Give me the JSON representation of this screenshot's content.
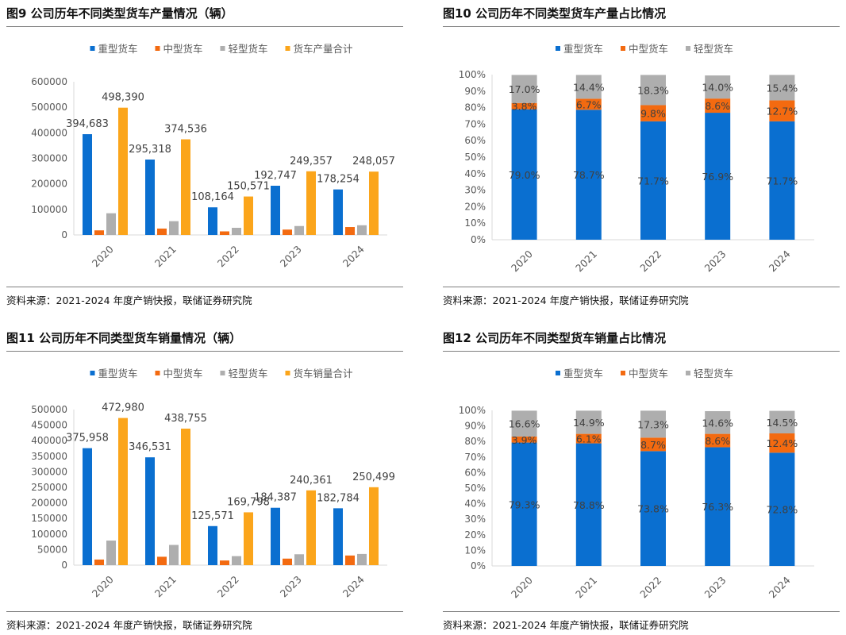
{
  "colors": {
    "heavy": "#0a6fd0",
    "medium": "#f36a10",
    "light": "#aeaeae",
    "total": "#fba51b",
    "axis": "#d9d9d9",
    "tick_text": "#595959",
    "label_text": "#404040"
  },
  "charts": [
    {
      "id": "fig9",
      "title": "图9  公司历年不同类型货车产量情况（辆）",
      "source": "资料来源：2021-2024 年度产销快报，联储证券研究院",
      "chart_data": {
        "type": "bar",
        "title": "公司历年不同类型货车产量情况（辆）",
        "categories": [
          "2020",
          "2021",
          "2022",
          "2023",
          "2024"
        ],
        "ylim": [
          0,
          600000
        ],
        "yticks": [
          0,
          100000,
          200000,
          300000,
          400000,
          500000,
          600000
        ],
        "ytick_labels": [
          "0",
          "100000",
          "200000",
          "300000",
          "400000",
          "500000",
          "600000"
        ],
        "legend_position": "top",
        "series": [
          {
            "name": "重型货车",
            "key": "heavy",
            "values": [
              394683,
              295318,
              108164,
              192747,
              178254
            ],
            "labels": [
              "394,683",
              "295,318",
              "108,164",
              "192,747",
              "178,254"
            ]
          },
          {
            "name": "中型货车",
            "key": "medium",
            "values": [
              18000,
              25000,
              14000,
              21000,
              31000
            ],
            "labels": null
          },
          {
            "name": "轻型货车",
            "key": "light",
            "values": [
              85000,
              54000,
              28000,
              35000,
              38000
            ],
            "labels": null
          },
          {
            "name": "货车产量合计",
            "key": "total",
            "values": [
              498390,
              374536,
              150571,
              249357,
              248057
            ],
            "labels": [
              "498,390",
              "374,536",
              "150,571",
              "249,357",
              "248,057"
            ]
          }
        ]
      }
    },
    {
      "id": "fig10",
      "title": "图10 公司历年不同类型货车产量占比情况",
      "source": "资料来源：2021-2024 年度产销快报，联储证券研究院",
      "chart_data": {
        "type": "stacked_bar",
        "title": "公司历年不同类型货车产量占比情况",
        "categories": [
          "2020",
          "2021",
          "2022",
          "2023",
          "2024"
        ],
        "ylim": [
          0,
          100
        ],
        "yticks": [
          0,
          10,
          20,
          30,
          40,
          50,
          60,
          70,
          80,
          90,
          100
        ],
        "ytick_labels": [
          "0%",
          "10%",
          "20%",
          "30%",
          "40%",
          "50%",
          "60%",
          "70%",
          "80%",
          "90%",
          "100%"
        ],
        "legend_position": "top",
        "series": [
          {
            "name": "重型货车",
            "key": "heavy",
            "values": [
              79.0,
              78.7,
              71.7,
              76.9,
              71.7
            ],
            "labels": [
              "79.0%",
              "78.7%",
              "71.7%",
              "76.9%",
              "71.7%"
            ]
          },
          {
            "name": "中型货车",
            "key": "medium",
            "values": [
              3.8,
              6.7,
              9.8,
              8.6,
              12.7
            ],
            "labels": [
              "3.8%",
              "6.7%",
              "9.8%",
              "8.6%",
              "12.7%"
            ]
          },
          {
            "name": "轻型货车",
            "key": "light",
            "values": [
              17.0,
              14.4,
              18.3,
              14.0,
              15.4
            ],
            "labels": [
              "17.0%",
              "14.4%",
              "18.3%",
              "14.0%",
              "15.4%"
            ]
          }
        ]
      }
    },
    {
      "id": "fig11",
      "title": "图11 公司历年不同类型货车销量情况（辆）",
      "source": "资料来源：2021-2024 年度产销快报，联储证券研究院",
      "chart_data": {
        "type": "bar",
        "title": "公司历年不同类型货车销量情况（辆）",
        "categories": [
          "2020",
          "2021",
          "2022",
          "2023",
          "2024"
        ],
        "ylim": [
          0,
          500000
        ],
        "yticks": [
          0,
          50000,
          100000,
          150000,
          200000,
          250000,
          300000,
          350000,
          400000,
          450000,
          500000
        ],
        "ytick_labels": [
          "0",
          "50000",
          "100000",
          "150000",
          "200000",
          "250000",
          "300000",
          "350000",
          "400000",
          "450000",
          "500000"
        ],
        "legend_position": "top",
        "series": [
          {
            "name": "重型货车",
            "key": "heavy",
            "values": [
              375958,
              346531,
              125571,
              184387,
              182784
            ],
            "labels": [
              "375,958",
              "346,531",
              "125,571",
              "184,387",
              "182,784"
            ]
          },
          {
            "name": "中型货车",
            "key": "medium",
            "values": [
              18000,
              27000,
              15000,
              21000,
              31000
            ],
            "labels": null
          },
          {
            "name": "轻型货车",
            "key": "light",
            "values": [
              79000,
              65000,
              29000,
              35000,
              36000
            ],
            "labels": null
          },
          {
            "name": "货车销量合计",
            "key": "total",
            "values": [
              472980,
              438755,
              169798,
              240361,
              250499
            ],
            "labels": [
              "472,980",
              "438,755",
              "169,798",
              "240,361",
              "250,499"
            ]
          }
        ]
      }
    },
    {
      "id": "fig12",
      "title": "图12 公司历年不同类型货车销量占比情况",
      "source": "资料来源：2021-2024 年度产销快报，联储证券研究院",
      "chart_data": {
        "type": "stacked_bar",
        "title": "公司历年不同类型货车销量占比情况",
        "categories": [
          "2020",
          "2021",
          "2022",
          "2023",
          "2024"
        ],
        "ylim": [
          0,
          100
        ],
        "yticks": [
          0,
          10,
          20,
          30,
          40,
          50,
          60,
          70,
          80,
          90,
          100
        ],
        "ytick_labels": [
          "0%",
          "10%",
          "20%",
          "30%",
          "40%",
          "50%",
          "60%",
          "70%",
          "80%",
          "90%",
          "100%"
        ],
        "legend_position": "top",
        "series": [
          {
            "name": "重型货车",
            "key": "heavy",
            "values": [
              79.3,
              78.8,
              73.8,
              76.3,
              72.8
            ],
            "labels": [
              "79.3%",
              "78.8%",
              "73.8%",
              "76.3%",
              "72.8%"
            ]
          },
          {
            "name": "中型货车",
            "key": "medium",
            "values": [
              3.9,
              6.1,
              8.7,
              8.6,
              12.4
            ],
            "labels": [
              "3.9%",
              "6.1%",
              "8.7%",
              "8.6%",
              "12.4%"
            ]
          },
          {
            "name": "轻型货车",
            "key": "light",
            "values": [
              16.6,
              14.9,
              17.3,
              14.6,
              14.5
            ],
            "labels": [
              "16.6%",
              "14.9%",
              "17.3%",
              "14.6%",
              "14.5%"
            ]
          }
        ]
      }
    }
  ]
}
